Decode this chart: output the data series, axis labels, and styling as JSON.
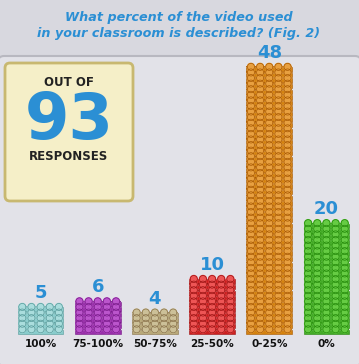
{
  "title_line1": "What percent of the video used",
  "title_line2": "in your classroom is described? (Fig. 2)",
  "title_color": "#2b8fd4",
  "panel_bg": "#d8d8df",
  "chart_bg": "#e2e2e8",
  "info_box_bg": "#f5efc8",
  "info_box_border": "#c8b870",
  "info_box_text1": "OUT OF",
  "info_box_number": "93",
  "info_box_text2": "RESPONSES",
  "categories": [
    "100%",
    "75-100%",
    "50-75%",
    "25-50%",
    "0-25%",
    "0%"
  ],
  "values": [
    5,
    6,
    4,
    10,
    48,
    20
  ],
  "bar_colors": [
    "#88cccc",
    "#9930aa",
    "#b8a878",
    "#cc2020",
    "#d4820e",
    "#44aa28"
  ],
  "bar_colors_dark": [
    "#559999",
    "#771888",
    "#887048",
    "#991010",
    "#a85800",
    "#228808"
  ],
  "bar_colors_light": [
    "#aadddd",
    "#bb55cc",
    "#ccc098",
    "#ee5555",
    "#e8a040",
    "#66cc44"
  ],
  "value_color": "#2b8fd4",
  "label_color": "#111111"
}
